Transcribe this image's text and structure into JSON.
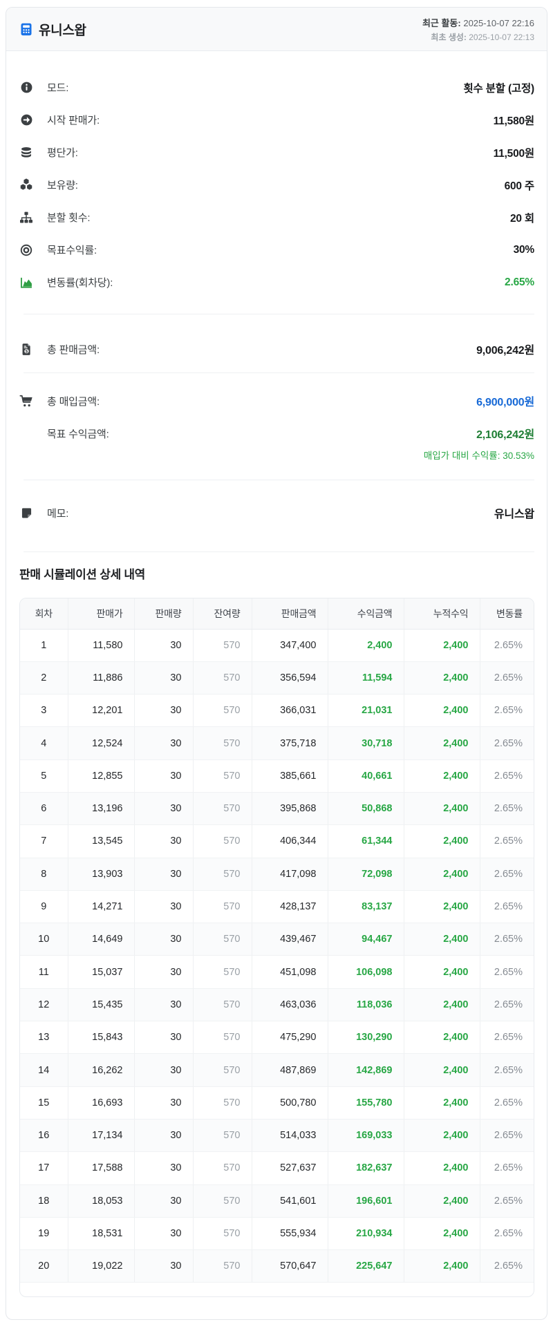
{
  "header": {
    "title": "유니스왑",
    "last_activity_label": "최근 활동:",
    "last_activity_value": "2025-10-07 22:16",
    "created_label": "최초 생성:",
    "created_value": "2025-10-07 22:13"
  },
  "info_rows": [
    {
      "icon": "info-circle-icon",
      "label": "모드:",
      "value": "횟수 분할 (고정)"
    },
    {
      "icon": "arrow-circle-right-icon",
      "label": "시작 판매가:",
      "value": "11,580원"
    },
    {
      "icon": "coins-icon",
      "label": "평단가:",
      "value": "11,500원"
    },
    {
      "icon": "cubes-icon",
      "label": "보유량:",
      "value": "600 주"
    },
    {
      "icon": "sitemap-icon",
      "label": "분할 횟수:",
      "value": "20 회"
    },
    {
      "icon": "bullseye-icon",
      "label": "목표수익률:",
      "value": "30%"
    },
    {
      "icon": "area-chart-icon",
      "label": "변동률(회차당):",
      "value": "2.65%"
    }
  ],
  "summary": {
    "total_sale_label": "총 판매금액:",
    "total_sale_value": "9,006,242원",
    "total_buy_label": "총 매입금액:",
    "total_buy_value": "6,900,000원",
    "target_profit_label": "목표 수익금액:",
    "target_profit_value": "2,106,242원",
    "profit_rate_note": "매입가 대비 수익률: 30.53%",
    "memo_label": "메모:",
    "memo_value": "유니스왑"
  },
  "table": {
    "title": "판매 시뮬레이션 상세 내역",
    "columns": [
      "회차",
      "판매가",
      "판매량",
      "잔여량",
      "판매금액",
      "수익금액",
      "누적수익",
      "변동률"
    ],
    "col_keys": [
      "round",
      "sale-price",
      "sale-qty",
      "remaining-qty",
      "sale-amount",
      "profit-amount",
      "cumulative-profit",
      "change-rate"
    ],
    "rows": [
      [
        "1",
        "11,580",
        "30",
        "570",
        "347,400",
        "2,400",
        "2,400",
        "2.65%"
      ],
      [
        "2",
        "11,886",
        "30",
        "570",
        "356,594",
        "11,594",
        "2,400",
        "2.65%"
      ],
      [
        "3",
        "12,201",
        "30",
        "570",
        "366,031",
        "21,031",
        "2,400",
        "2.65%"
      ],
      [
        "4",
        "12,524",
        "30",
        "570",
        "375,718",
        "30,718",
        "2,400",
        "2.65%"
      ],
      [
        "5",
        "12,855",
        "30",
        "570",
        "385,661",
        "40,661",
        "2,400",
        "2.65%"
      ],
      [
        "6",
        "13,196",
        "30",
        "570",
        "395,868",
        "50,868",
        "2,400",
        "2.65%"
      ],
      [
        "7",
        "13,545",
        "30",
        "570",
        "406,344",
        "61,344",
        "2,400",
        "2.65%"
      ],
      [
        "8",
        "13,903",
        "30",
        "570",
        "417,098",
        "72,098",
        "2,400",
        "2.65%"
      ],
      [
        "9",
        "14,271",
        "30",
        "570",
        "428,137",
        "83,137",
        "2,400",
        "2.65%"
      ],
      [
        "10",
        "14,649",
        "30",
        "570",
        "439,467",
        "94,467",
        "2,400",
        "2.65%"
      ],
      [
        "11",
        "15,037",
        "30",
        "570",
        "451,098",
        "106,098",
        "2,400",
        "2.65%"
      ],
      [
        "12",
        "15,435",
        "30",
        "570",
        "463,036",
        "118,036",
        "2,400",
        "2.65%"
      ],
      [
        "13",
        "15,843",
        "30",
        "570",
        "475,290",
        "130,290",
        "2,400",
        "2.65%"
      ],
      [
        "14",
        "16,262",
        "30",
        "570",
        "487,869",
        "142,869",
        "2,400",
        "2.65%"
      ],
      [
        "15",
        "16,693",
        "30",
        "570",
        "500,780",
        "155,780",
        "2,400",
        "2.65%"
      ],
      [
        "16",
        "17,134",
        "30",
        "570",
        "514,033",
        "169,033",
        "2,400",
        "2.65%"
      ],
      [
        "17",
        "17,588",
        "30",
        "570",
        "527,637",
        "182,637",
        "2,400",
        "2.65%"
      ],
      [
        "18",
        "18,053",
        "30",
        "570",
        "541,601",
        "196,601",
        "2,400",
        "2.65%"
      ],
      [
        "19",
        "18,531",
        "30",
        "570",
        "555,934",
        "210,934",
        "2,400",
        "2.65%"
      ],
      [
        "20",
        "19,022",
        "30",
        "570",
        "570,647",
        "225,647",
        "2,400",
        "2.65%"
      ]
    ]
  }
}
